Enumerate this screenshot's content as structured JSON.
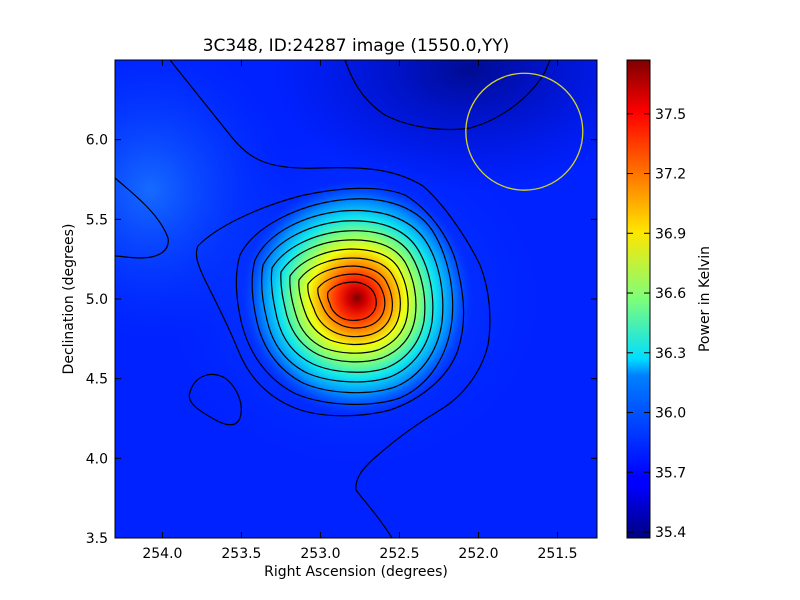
{
  "chart_data": {
    "type": "heatmap",
    "title": "3C348, ID:24287 image (1550.0,YY)",
    "xlabel": "Right Ascension (degrees)",
    "ylabel": "Declination (degrees)",
    "colorbar_label": "Power in Kelvin",
    "xlim": [
      254.3,
      251.25
    ],
    "ylim": [
      3.5,
      6.5
    ],
    "x_ticks": [
      254.0,
      253.5,
      253.0,
      252.5,
      252.0,
      251.5
    ],
    "x_tick_labels": [
      "254.0",
      "253.5",
      "253.0",
      "252.5",
      "252.0",
      "251.5"
    ],
    "y_ticks": [
      3.5,
      4.0,
      4.5,
      5.0,
      5.5,
      6.0
    ],
    "y_tick_labels": [
      "3.5",
      "4.0",
      "4.5",
      "5.0",
      "5.5",
      "6.0"
    ],
    "colorbar_range": [
      35.37,
      37.77
    ],
    "colorbar_ticks": [
      35.4,
      35.7,
      36.0,
      36.3,
      36.6,
      36.9,
      37.2,
      37.5
    ],
    "colorbar_tick_labels": [
      "35.4",
      "35.7",
      "36.0",
      "36.3",
      "36.6",
      "36.9",
      "37.2",
      "37.5"
    ],
    "colormap": "jet",
    "peak": {
      "ra": 252.77,
      "dec": 5.0,
      "value": 37.77
    },
    "beam_circle": {
      "ra": 251.71,
      "dec": 6.05,
      "radius_deg": 0.37,
      "color": "#d4d42a"
    },
    "contour_color": "#000000",
    "grid": false
  }
}
